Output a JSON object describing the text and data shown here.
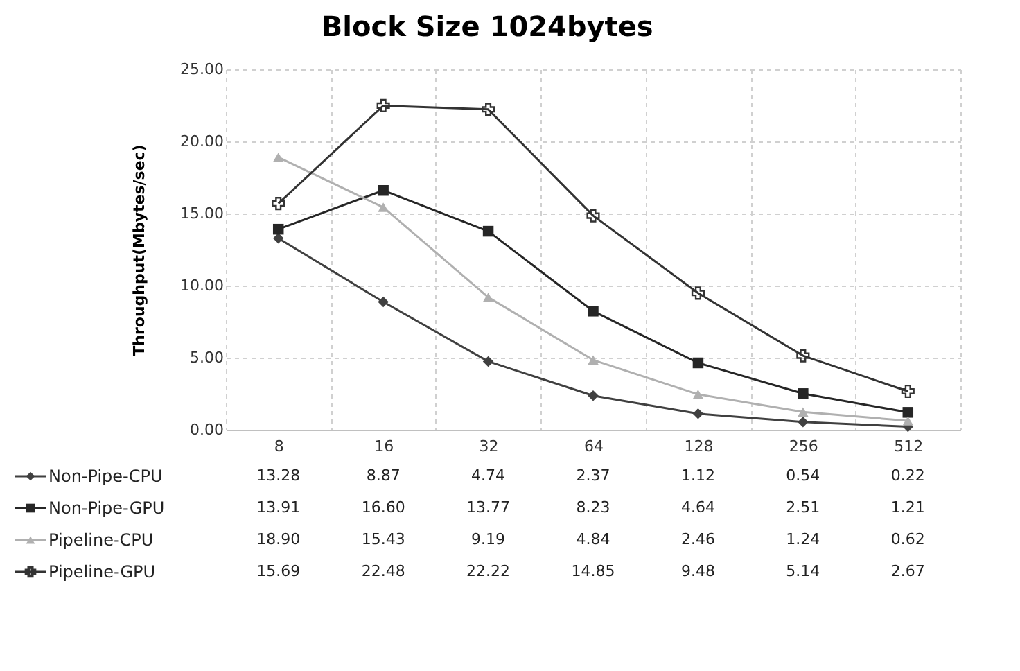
{
  "chart_data": {
    "type": "line",
    "title": "Block Size 1024bytes",
    "ylabel": "Throughput(Mbytes/sec)",
    "categories": [
      "8",
      "16",
      "32",
      "64",
      "128",
      "256",
      "512"
    ],
    "ylim": [
      0,
      25
    ],
    "yticks": [
      {
        "value": 0,
        "label": "0.00"
      },
      {
        "value": 5,
        "label": "5.00"
      },
      {
        "value": 10,
        "label": "10.00"
      },
      {
        "value": 15,
        "label": "15.00"
      },
      {
        "value": 20,
        "label": "20.00"
      },
      {
        "value": 25,
        "label": "25.00"
      }
    ],
    "grid": true,
    "legend": "bottom",
    "line_style": "solid",
    "series": [
      {
        "name": "Non-Pipe-CPU",
        "color": "#404040",
        "marker": "diamond",
        "values": [
          13.28,
          8.87,
          4.74,
          2.37,
          1.12,
          0.54,
          0.22
        ],
        "value_labels": [
          "13.28",
          "8.87",
          "4.74",
          "2.37",
          "1.12",
          "0.54",
          "0.22"
        ]
      },
      {
        "name": "Non-Pipe-GPU",
        "color": "#262626",
        "marker": "square",
        "values": [
          13.91,
          16.6,
          13.77,
          8.23,
          4.64,
          2.51,
          1.21
        ],
        "value_labels": [
          "13.91",
          "16.60",
          "13.77",
          "8.23",
          "4.64",
          "2.51",
          "1.21"
        ]
      },
      {
        "name": "Pipeline-CPU",
        "color": "#b0b0b0",
        "marker": "triangle",
        "values": [
          18.9,
          15.43,
          9.19,
          4.84,
          2.46,
          1.24,
          0.62
        ],
        "value_labels": [
          "18.90",
          "15.43",
          "9.19",
          "4.84",
          "2.46",
          "1.24",
          "0.62"
        ]
      },
      {
        "name": "Pipeline-GPU",
        "color": "#333333",
        "marker": "cross",
        "values": [
          15.69,
          22.48,
          22.22,
          14.85,
          9.48,
          5.14,
          2.67
        ],
        "value_labels": [
          "15.69",
          "22.48",
          "22.22",
          "14.85",
          "9.48",
          "5.14",
          "2.67"
        ]
      }
    ]
  }
}
